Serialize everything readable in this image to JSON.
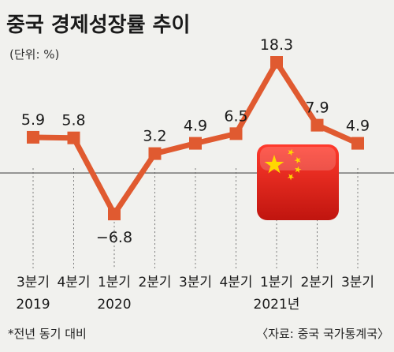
{
  "chart_data": {
    "type": "line",
    "title": "중국 경제성장률 추이",
    "unit_note": "(단위: %)",
    "categories": [
      "3분기",
      "4분기",
      "1분기",
      "2분기",
      "3분기",
      "4분기",
      "1분기",
      "2분기",
      "3분기"
    ],
    "year_labels": [
      {
        "index": 0,
        "label": "2019"
      },
      {
        "index": 2,
        "label": "2020"
      },
      {
        "index": 6,
        "label": "2021년"
      }
    ],
    "values": [
      5.9,
      5.8,
      -6.8,
      3.2,
      4.9,
      6.5,
      18.3,
      7.9,
      4.9
    ],
    "value_labels": [
      "5.9",
      "5.8",
      "−6.8",
      "3.2",
      "4.9",
      "6.5",
      "18.3",
      "7.9",
      "4.9"
    ],
    "ylim": [
      -9,
      20
    ],
    "baseline": 0,
    "grid": false,
    "footnote": "*전년 동기 대비",
    "source": "〈자료: 중국 국가통계국〉",
    "colors": {
      "background": "#f1f1ee",
      "line": "#e05a30",
      "marker": "#e05a30",
      "flag_red": "#d81e16",
      "flag_star": "#ffd800",
      "baseline": "#555555",
      "guide": "#777777"
    },
    "decoration": "china-flag-icon"
  }
}
